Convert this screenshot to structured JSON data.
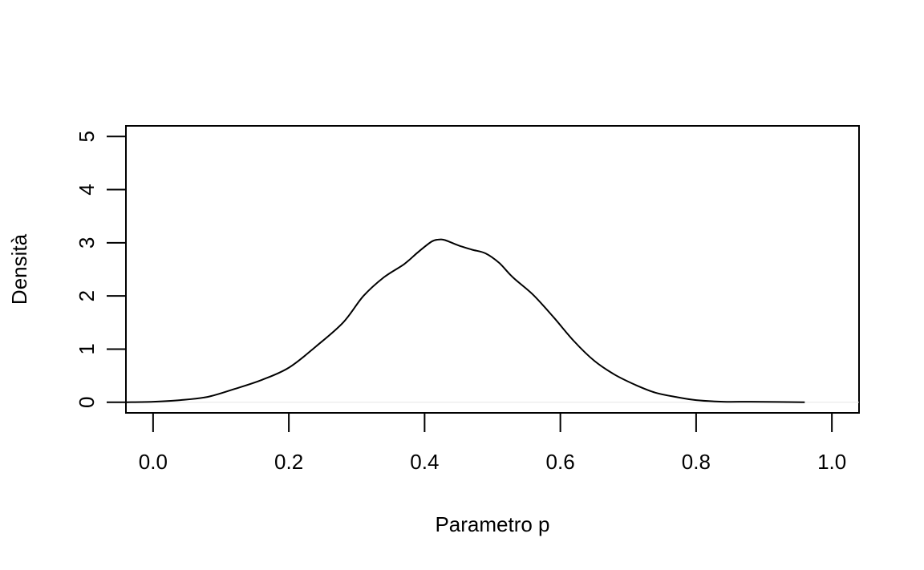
{
  "chart_data": {
    "type": "line",
    "title": "",
    "xlabel": "Parametro p",
    "ylabel": "Densità",
    "xlim": [
      -0.04,
      1.04
    ],
    "ylim": [
      -0.2,
      5.2
    ],
    "x_ticks": [
      0.0,
      0.2,
      0.4,
      0.6,
      0.8,
      1.0
    ],
    "x_tick_labels": [
      "0.0",
      "0.2",
      "0.4",
      "0.6",
      "0.8",
      "1.0"
    ],
    "y_ticks": [
      0,
      1,
      2,
      3,
      4,
      5
    ],
    "y_tick_labels": [
      "0",
      "1",
      "2",
      "3",
      "4",
      "5"
    ],
    "grid": false,
    "legend": "none",
    "series": [
      {
        "x": [
          -0.04,
          0.0,
          0.04,
          0.08,
          0.12,
          0.16,
          0.2,
          0.24,
          0.28,
          0.31,
          0.34,
          0.37,
          0.39,
          0.41,
          0.42,
          0.43,
          0.45,
          0.47,
          0.49,
          0.51,
          0.53,
          0.56,
          0.59,
          0.62,
          0.65,
          0.68,
          0.71,
          0.74,
          0.77,
          0.8,
          0.84,
          0.88,
          0.92,
          0.96
        ],
        "y": [
          0.0,
          0.01,
          0.04,
          0.1,
          0.25,
          0.42,
          0.65,
          1.05,
          1.5,
          2.0,
          2.35,
          2.6,
          2.82,
          3.02,
          3.06,
          3.05,
          2.95,
          2.87,
          2.8,
          2.62,
          2.35,
          2.02,
          1.6,
          1.15,
          0.78,
          0.52,
          0.33,
          0.18,
          0.1,
          0.04,
          0.01,
          0.01,
          0.005,
          0.0
        ]
      }
    ]
  }
}
